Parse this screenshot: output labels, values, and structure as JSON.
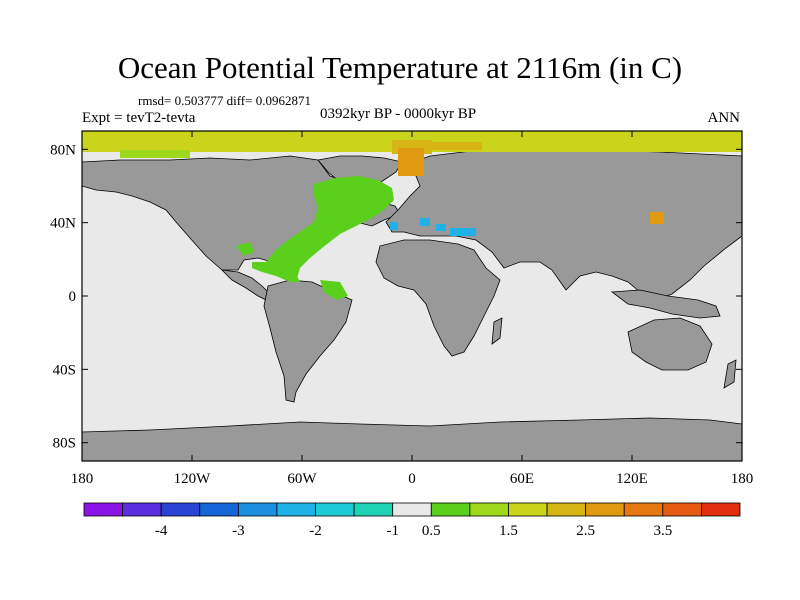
{
  "chart_data": {
    "type": "heatmap",
    "title": "Ocean Potential Temperature at 2116m (in C)",
    "stats": "rmsd= 0.503777  diff= 0.0962871",
    "left_label": "Expt = tevT2-tevta",
    "center_label": "0392kyr BP - 0000kyr BP",
    "right_label": "ANN",
    "x_ticks": [
      "180",
      "120W",
      "60W",
      "0",
      "60E",
      "120E",
      "180"
    ],
    "x_tick_values": [
      -180,
      -120,
      -60,
      0,
      60,
      120,
      180
    ],
    "y_ticks": [
      "80N",
      "40N",
      "0",
      "40S",
      "80S"
    ],
    "y_tick_values": [
      80,
      40,
      0,
      -40,
      -80
    ],
    "xlim": [
      -180,
      180
    ],
    "ylim": [
      -90,
      90
    ],
    "colorbar": {
      "colors": [
        "#8a14e6",
        "#5a2fe0",
        "#2a45d6",
        "#1766d8",
        "#1c8fe0",
        "#1eb2e6",
        "#1ecad6",
        "#1ed3b4",
        "#e9e9e9",
        "#5ad01c",
        "#9ed81c",
        "#c9d41a",
        "#d6b514",
        "#e09a12",
        "#e67812",
        "#e65a12",
        "#e0300e"
      ],
      "labels": [
        "-4",
        "-3",
        "-2",
        "-1",
        "0.5",
        "1.5",
        "2.5",
        "3.5"
      ],
      "label_after_box": [
        1,
        3,
        5,
        7,
        8,
        10,
        12,
        14
      ]
    },
    "colors": {
      "land": "#999999",
      "ocean_neutral": "#e9e9e9"
    }
  }
}
